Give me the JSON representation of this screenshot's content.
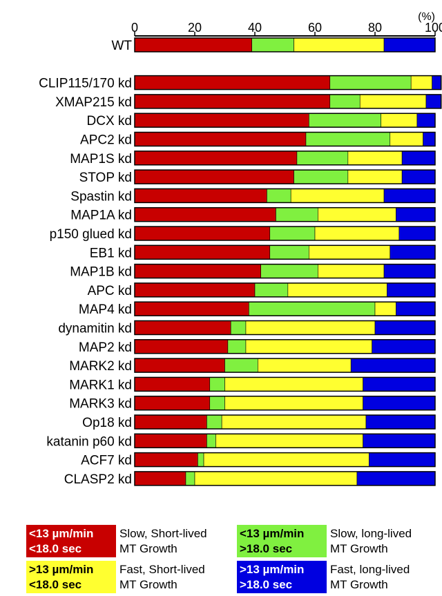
{
  "chart_data": {
    "type": "bar",
    "orientation": "horizontal",
    "stacked": true,
    "title": "",
    "xlabel": "",
    "unit": "(%)",
    "xlim": [
      0,
      100
    ],
    "xticks": [
      "0",
      "20",
      "40",
      "60",
      "80",
      "100"
    ],
    "categories": [
      "WT",
      "",
      "CLIP115/170 kd",
      "XMAP215 kd",
      "DCX kd",
      "APC2 kd",
      "MAP1S kd",
      "STOP kd",
      "Spastin kd",
      "MAP1A kd",
      "p150 glued kd",
      "EB1 kd",
      "MAP1B kd",
      "APC kd",
      "MAP4 kd",
      "dynamitin kd",
      "MAP2 kd",
      "MARK2 kd",
      "MARK1 kd",
      "MARK3 kd",
      "Op18 kd",
      "katanin p60 kd",
      "ACF7 kd",
      "CLASP2 kd"
    ],
    "series": [
      {
        "key": "slow_short",
        "color": "#c80000",
        "values": [
          39,
          null,
          65,
          65,
          58,
          57,
          54,
          53,
          44,
          47,
          45,
          45,
          42,
          40,
          38,
          32,
          31,
          30,
          25,
          25,
          24,
          24,
          21,
          17
        ]
      },
      {
        "key": "slow_long",
        "color": "#80f040",
        "values": [
          14,
          null,
          27,
          10,
          24,
          28,
          17,
          18,
          8,
          14,
          15,
          13,
          19,
          11,
          42,
          5,
          6,
          11,
          5,
          5,
          5,
          3,
          2,
          3
        ]
      },
      {
        "key": "fast_short",
        "color": "#ffff30",
        "values": [
          30,
          null,
          7,
          22,
          12,
          11,
          18,
          18,
          31,
          26,
          28,
          27,
          22,
          33,
          7,
          43,
          42,
          31,
          46,
          46,
          48,
          49,
          55,
          54
        ]
      },
      {
        "key": "fast_long",
        "color": "#0000e0",
        "values": [
          17,
          null,
          3,
          5,
          6,
          4,
          11,
          11,
          17,
          13,
          12,
          15,
          17,
          16,
          13,
          20,
          21,
          28,
          24,
          24,
          23,
          24,
          22,
          26
        ]
      }
    ]
  },
  "legend": [
    {
      "key": "slow_short",
      "color": "#c80000",
      "text_color": "#ffffff",
      "rate": "<13 µm/min",
      "time": "<18.0 sec",
      "desc1": "Slow, Short-lived",
      "desc2": "MT Growth"
    },
    {
      "key": "slow_long",
      "color": "#80f040",
      "text_color": "#000000",
      "rate": "<13 µm/min",
      "time": ">18.0 sec",
      "desc1": "Slow, long-lived",
      "desc2": "MT Growth"
    },
    {
      "key": "fast_short",
      "color": "#ffff30",
      "text_color": "#000000",
      "rate": ">13 µm/min",
      "time": "<18.0 sec",
      "desc1": "Fast, Short-lived",
      "desc2": "MT Growth"
    },
    {
      "key": "fast_long",
      "color": "#0000e0",
      "text_color": "#ffffff",
      "rate": ">13 µm/min",
      "time": ">18.0 sec",
      "desc1": "Fast, long-lived",
      "desc2": "MT Growth"
    }
  ]
}
